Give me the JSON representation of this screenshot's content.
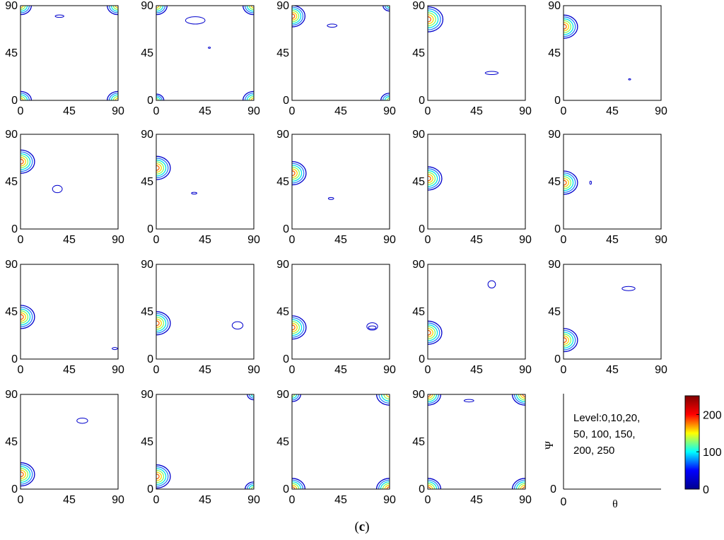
{
  "caption": {
    "open": "(",
    "letter": "c",
    "close": ")"
  },
  "chart_data": {
    "type": "contour",
    "x_range": [
      0,
      90
    ],
    "y_range": [
      0,
      90
    ],
    "x_ticks": [
      "0",
      "45",
      "90"
    ],
    "y_ticks": [
      "0",
      "45",
      "90"
    ],
    "contour_levels": [
      0,
      10,
      20,
      50,
      100,
      150,
      200,
      250
    ],
    "panels": [
      {
        "features": [
          {
            "type": "peak",
            "x": 0,
            "y": 90,
            "r": 10,
            "rings": 5
          },
          {
            "type": "peak",
            "x": 90,
            "y": 90,
            "r": 10,
            "rings": 5
          },
          {
            "type": "peak",
            "x": 0,
            "y": 0,
            "r": 10,
            "rings": 5
          },
          {
            "type": "peak",
            "x": 90,
            "y": 0,
            "r": 10,
            "rings": 5
          },
          {
            "type": "blob",
            "x": 36,
            "y": 80,
            "w": 4,
            "h": 1.2
          }
        ]
      },
      {
        "features": [
          {
            "type": "peak",
            "x": 0,
            "y": 90,
            "r": 10,
            "rings": 5
          },
          {
            "type": "peak",
            "x": 90,
            "y": 90,
            "r": 10,
            "rings": 5
          },
          {
            "type": "peak",
            "x": 0,
            "y": 0,
            "r": 7,
            "rings": 4
          },
          {
            "type": "peak",
            "x": 90,
            "y": 0,
            "r": 10,
            "rings": 5
          },
          {
            "type": "blob",
            "x": 36,
            "y": 76,
            "w": 9,
            "h": 3.5
          },
          {
            "type": "blob",
            "x": 49,
            "y": 50,
            "w": 1,
            "h": 0.6
          }
        ]
      },
      {
        "features": [
          {
            "type": "peak",
            "x": 0,
            "y": 80,
            "r": 12,
            "rings": 6
          },
          {
            "type": "peak",
            "x": 90,
            "y": 90,
            "r": 6,
            "rings": 3
          },
          {
            "type": "peak",
            "x": 90,
            "y": 0,
            "r": 8,
            "rings": 4
          },
          {
            "type": "blob",
            "x": 37,
            "y": 71,
            "w": 4.5,
            "h": 1.5
          }
        ]
      },
      {
        "features": [
          {
            "type": "peak",
            "x": 0,
            "y": 77,
            "r": 14,
            "rings": 6
          },
          {
            "type": "blob",
            "x": 59,
            "y": 26,
            "w": 6,
            "h": 1.5
          }
        ]
      },
      {
        "features": [
          {
            "type": "peak",
            "x": 0,
            "y": 70,
            "r": 13,
            "rings": 6
          },
          {
            "type": "blob",
            "x": 61,
            "y": 20,
            "w": 1,
            "h": 0.6
          }
        ]
      },
      {
        "features": [
          {
            "type": "peak",
            "x": 0,
            "y": 64,
            "r": 13,
            "rings": 6
          },
          {
            "type": "blob",
            "x": 34,
            "y": 38,
            "w": 4.5,
            "h": 3.5
          }
        ]
      },
      {
        "features": [
          {
            "type": "peak",
            "x": 0,
            "y": 58,
            "r": 13,
            "rings": 6
          },
          {
            "type": "blob",
            "x": 35,
            "y": 34,
            "w": 2.5,
            "h": 0.8
          }
        ]
      },
      {
        "features": [
          {
            "type": "peak",
            "x": 0,
            "y": 53,
            "r": 13,
            "rings": 6
          },
          {
            "type": "blob",
            "x": 36,
            "y": 29,
            "w": 2.5,
            "h": 1
          }
        ]
      },
      {
        "features": [
          {
            "type": "peak",
            "x": 0,
            "y": 48,
            "r": 13,
            "rings": 6
          }
        ]
      },
      {
        "features": [
          {
            "type": "peak",
            "x": 0,
            "y": 44,
            "r": 13,
            "rings": 6
          },
          {
            "type": "blob",
            "x": 25,
            "y": 44,
            "w": 0.8,
            "h": 1.5
          }
        ]
      },
      {
        "features": [
          {
            "type": "peak",
            "x": 0,
            "y": 40,
            "r": 13,
            "rings": 6
          },
          {
            "type": "blob",
            "x": 87,
            "y": 10,
            "w": 2.5,
            "h": 1
          }
        ]
      },
      {
        "features": [
          {
            "type": "peak",
            "x": 0,
            "y": 34,
            "r": 13,
            "rings": 6
          },
          {
            "type": "blob",
            "x": 75,
            "y": 32,
            "w": 5,
            "h": 3.5
          }
        ]
      },
      {
        "features": [
          {
            "type": "peak",
            "x": 0,
            "y": 30,
            "r": 13,
            "rings": 6
          },
          {
            "type": "blob",
            "x": 74,
            "y": 31,
            "w": 5,
            "h": 3.5
          },
          {
            "type": "blob",
            "x": 74,
            "y": 30,
            "w": 3.5,
            "h": 1.5
          }
        ]
      },
      {
        "features": [
          {
            "type": "peak",
            "x": 0,
            "y": 25,
            "r": 13,
            "rings": 6
          },
          {
            "type": "blob",
            "x": 59,
            "y": 71,
            "w": 3.5,
            "h": 3.5
          }
        ]
      },
      {
        "features": [
          {
            "type": "peak",
            "x": 0,
            "y": 18,
            "r": 13,
            "rings": 6
          },
          {
            "type": "blob",
            "x": 60,
            "y": 67,
            "w": 6,
            "h": 2
          }
        ]
      },
      {
        "features": [
          {
            "type": "peak",
            "x": 0,
            "y": 14,
            "r": 13,
            "rings": 6
          },
          {
            "type": "blob",
            "x": 57,
            "y": 65,
            "w": 5,
            "h": 2.5
          }
        ]
      },
      {
        "features": [
          {
            "type": "peak",
            "x": 0,
            "y": 12,
            "r": 13,
            "rings": 6
          },
          {
            "type": "peak",
            "x": 90,
            "y": 90,
            "r": 6,
            "rings": 3
          },
          {
            "type": "peak",
            "x": 90,
            "y": 0,
            "r": 8,
            "rings": 4
          }
        ]
      },
      {
        "features": [
          {
            "type": "peak",
            "x": 0,
            "y": 90,
            "r": 8,
            "rings": 4
          },
          {
            "type": "peak",
            "x": 90,
            "y": 90,
            "r": 12,
            "rings": 5
          },
          {
            "type": "peak",
            "x": 0,
            "y": 0,
            "r": 12,
            "rings": 6
          },
          {
            "type": "peak",
            "x": 90,
            "y": 0,
            "r": 12,
            "rings": 6
          }
        ]
      },
      {
        "features": [
          {
            "type": "peak",
            "x": 0,
            "y": 90,
            "r": 12,
            "rings": 6
          },
          {
            "type": "peak",
            "x": 90,
            "y": 90,
            "r": 12,
            "rings": 6
          },
          {
            "type": "peak",
            "x": 0,
            "y": 0,
            "r": 12,
            "rings": 6
          },
          {
            "type": "peak",
            "x": 90,
            "y": 0,
            "r": 12,
            "rings": 6
          },
          {
            "type": "blob",
            "x": 38,
            "y": 84,
            "w": 4.5,
            "h": 1.2
          }
        ]
      }
    ],
    "legend_panel": {
      "text_lines": [
        "Level:0,10,20,",
        "50, 100, 150,",
        "200, 250"
      ],
      "xlabel": "θ",
      "ylabel": "Ψ",
      "x_tick": "0",
      "y_tick": "0"
    },
    "colorbar": {
      "min": 0,
      "max": 250,
      "ticks": [
        0,
        100,
        200
      ],
      "colormap": "jet",
      "colors": [
        "#00008f",
        "#0000ff",
        "#00ffff",
        "#ffff00",
        "#ff0000",
        "#800000"
      ]
    }
  }
}
